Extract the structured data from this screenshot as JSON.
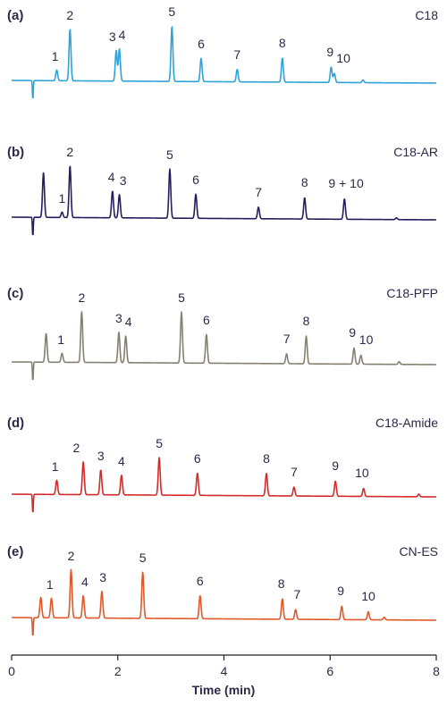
{
  "chart_data": {
    "type": "line",
    "xlabel": "Time (min)",
    "xlim": [
      0,
      8
    ],
    "xticks": [
      0,
      2,
      4,
      6,
      8
    ],
    "panels": [
      {
        "letter": "(a)",
        "title": "C18",
        "color": "#2ea3d8",
        "peaks": [
          {
            "t": 0.85,
            "h": 12
          },
          {
            "t": 1.1,
            "h": 58
          },
          {
            "t": 1.97,
            "h": 34
          },
          {
            "t": 2.03,
            "h": 36
          },
          {
            "t": 3.02,
            "h": 62
          },
          {
            "t": 3.57,
            "h": 26
          },
          {
            "t": 4.25,
            "h": 14
          },
          {
            "t": 5.1,
            "h": 27
          },
          {
            "t": 6.02,
            "h": 17
          },
          {
            "t": 6.08,
            "h": 10
          },
          {
            "t": 6.62,
            "h": 3
          }
        ],
        "labels": [
          {
            "text": "1",
            "t": 0.82,
            "h": 22
          },
          {
            "text": "2",
            "t": 1.1,
            "h": 68
          },
          {
            "text": "3",
            "t": 1.9,
            "h": 44
          },
          {
            "text": "4",
            "t": 2.08,
            "h": 46
          },
          {
            "text": "5",
            "t": 3.02,
            "h": 72
          },
          {
            "text": "6",
            "t": 3.57,
            "h": 36
          },
          {
            "text": "7",
            "t": 4.25,
            "h": 24
          },
          {
            "text": "8",
            "t": 5.1,
            "h": 37
          },
          {
            "text": "9",
            "t": 6.0,
            "h": 27
          },
          {
            "text": "10",
            "t": 6.25,
            "h": 20
          }
        ]
      },
      {
        "letter": "(b)",
        "title": "C18-AR",
        "color": "#231f5c",
        "peaks": [
          {
            "t": 0.6,
            "h": 50
          },
          {
            "t": 0.95,
            "h": 6
          },
          {
            "t": 1.1,
            "h": 58
          },
          {
            "t": 1.9,
            "h": 30
          },
          {
            "t": 2.03,
            "h": 26
          },
          {
            "t": 2.98,
            "h": 55
          },
          {
            "t": 3.47,
            "h": 27
          },
          {
            "t": 4.65,
            "h": 13
          },
          {
            "t": 5.52,
            "h": 24
          },
          {
            "t": 6.27,
            "h": 23
          },
          {
            "t": 7.25,
            "h": 2
          }
        ],
        "labels": [
          {
            "text": "1",
            "t": 0.95,
            "h": 16
          },
          {
            "text": "2",
            "t": 1.1,
            "h": 68
          },
          {
            "text": "4",
            "t": 1.88,
            "h": 40
          },
          {
            "text": "3",
            "t": 2.1,
            "h": 36
          },
          {
            "text": "5",
            "t": 2.98,
            "h": 65
          },
          {
            "text": "6",
            "t": 3.47,
            "h": 37
          },
          {
            "text": "7",
            "t": 4.65,
            "h": 23
          },
          {
            "text": "8",
            "t": 5.52,
            "h": 34
          },
          {
            "text": "9 + 10",
            "t": 6.3,
            "h": 33
          }
        ]
      },
      {
        "letter": "(c)",
        "title": "C18-PFP",
        "color": "#858070",
        "peaks": [
          {
            "t": 0.65,
            "h": 32
          },
          {
            "t": 0.95,
            "h": 10
          },
          {
            "t": 1.32,
            "h": 57
          },
          {
            "t": 2.02,
            "h": 34
          },
          {
            "t": 2.15,
            "h": 30
          },
          {
            "t": 3.2,
            "h": 57
          },
          {
            "t": 3.67,
            "h": 32
          },
          {
            "t": 5.18,
            "h": 11
          },
          {
            "t": 5.55,
            "h": 31
          },
          {
            "t": 6.45,
            "h": 18
          },
          {
            "t": 6.58,
            "h": 10
          },
          {
            "t": 7.3,
            "h": 3
          }
        ],
        "labels": [
          {
            "text": "1",
            "t": 0.93,
            "h": 20
          },
          {
            "text": "2",
            "t": 1.32,
            "h": 67
          },
          {
            "text": "3",
            "t": 2.02,
            "h": 44
          },
          {
            "text": "4",
            "t": 2.2,
            "h": 40
          },
          {
            "text": "5",
            "t": 3.2,
            "h": 67
          },
          {
            "text": "6",
            "t": 3.67,
            "h": 42
          },
          {
            "text": "7",
            "t": 5.18,
            "h": 21
          },
          {
            "text": "8",
            "t": 5.55,
            "h": 41
          },
          {
            "text": "9",
            "t": 6.42,
            "h": 28
          },
          {
            "text": "10",
            "t": 6.68,
            "h": 20
          }
        ]
      },
      {
        "letter": "(d)",
        "title": "C18-Amide",
        "color": "#d42a2a",
        "peaks": [
          {
            "t": 0.85,
            "h": 16
          },
          {
            "t": 1.35,
            "h": 37
          },
          {
            "t": 1.68,
            "h": 28
          },
          {
            "t": 2.07,
            "h": 22
          },
          {
            "t": 2.78,
            "h": 42
          },
          {
            "t": 3.5,
            "h": 25
          },
          {
            "t": 4.8,
            "h": 25
          },
          {
            "t": 5.32,
            "h": 10
          },
          {
            "t": 6.1,
            "h": 17
          },
          {
            "t": 6.63,
            "h": 9
          },
          {
            "t": 7.67,
            "h": 3
          }
        ],
        "labels": [
          {
            "text": "1",
            "t": 0.82,
            "h": 26
          },
          {
            "text": "2",
            "t": 1.22,
            "h": 47
          },
          {
            "text": "3",
            "t": 1.68,
            "h": 38
          },
          {
            "text": "4",
            "t": 2.07,
            "h": 32
          },
          {
            "text": "5",
            "t": 2.78,
            "h": 52
          },
          {
            "text": "6",
            "t": 3.5,
            "h": 35
          },
          {
            "text": "8",
            "t": 4.8,
            "h": 35
          },
          {
            "text": "7",
            "t": 5.32,
            "h": 20
          },
          {
            "text": "9",
            "t": 6.1,
            "h": 27
          },
          {
            "text": "10",
            "t": 6.6,
            "h": 19
          }
        ]
      },
      {
        "letter": "(e)",
        "title": "CN-ES",
        "color": "#e0592a",
        "peaks": [
          {
            "t": 0.55,
            "h": 23
          },
          {
            "t": 0.75,
            "h": 22
          },
          {
            "t": 1.12,
            "h": 54
          },
          {
            "t": 1.35,
            "h": 25
          },
          {
            "t": 1.7,
            "h": 30
          },
          {
            "t": 2.47,
            "h": 52
          },
          {
            "t": 3.55,
            "h": 26
          },
          {
            "t": 5.1,
            "h": 23
          },
          {
            "t": 5.35,
            "h": 11
          },
          {
            "t": 6.22,
            "h": 15
          },
          {
            "t": 6.72,
            "h": 9
          },
          {
            "t": 7.02,
            "h": 3
          }
        ],
        "labels": [
          {
            "text": "1",
            "t": 0.72,
            "h": 32
          },
          {
            "text": "2",
            "t": 1.12,
            "h": 64
          },
          {
            "text": "4",
            "t": 1.38,
            "h": 35
          },
          {
            "text": "3",
            "t": 1.72,
            "h": 40
          },
          {
            "text": "5",
            "t": 2.47,
            "h": 62
          },
          {
            "text": "6",
            "t": 3.55,
            "h": 36
          },
          {
            "text": "8",
            "t": 5.08,
            "h": 33
          },
          {
            "text": "7",
            "t": 5.38,
            "h": 21
          },
          {
            "text": "9",
            "t": 6.2,
            "h": 25
          },
          {
            "text": "10",
            "t": 6.72,
            "h": 19
          }
        ]
      }
    ]
  }
}
